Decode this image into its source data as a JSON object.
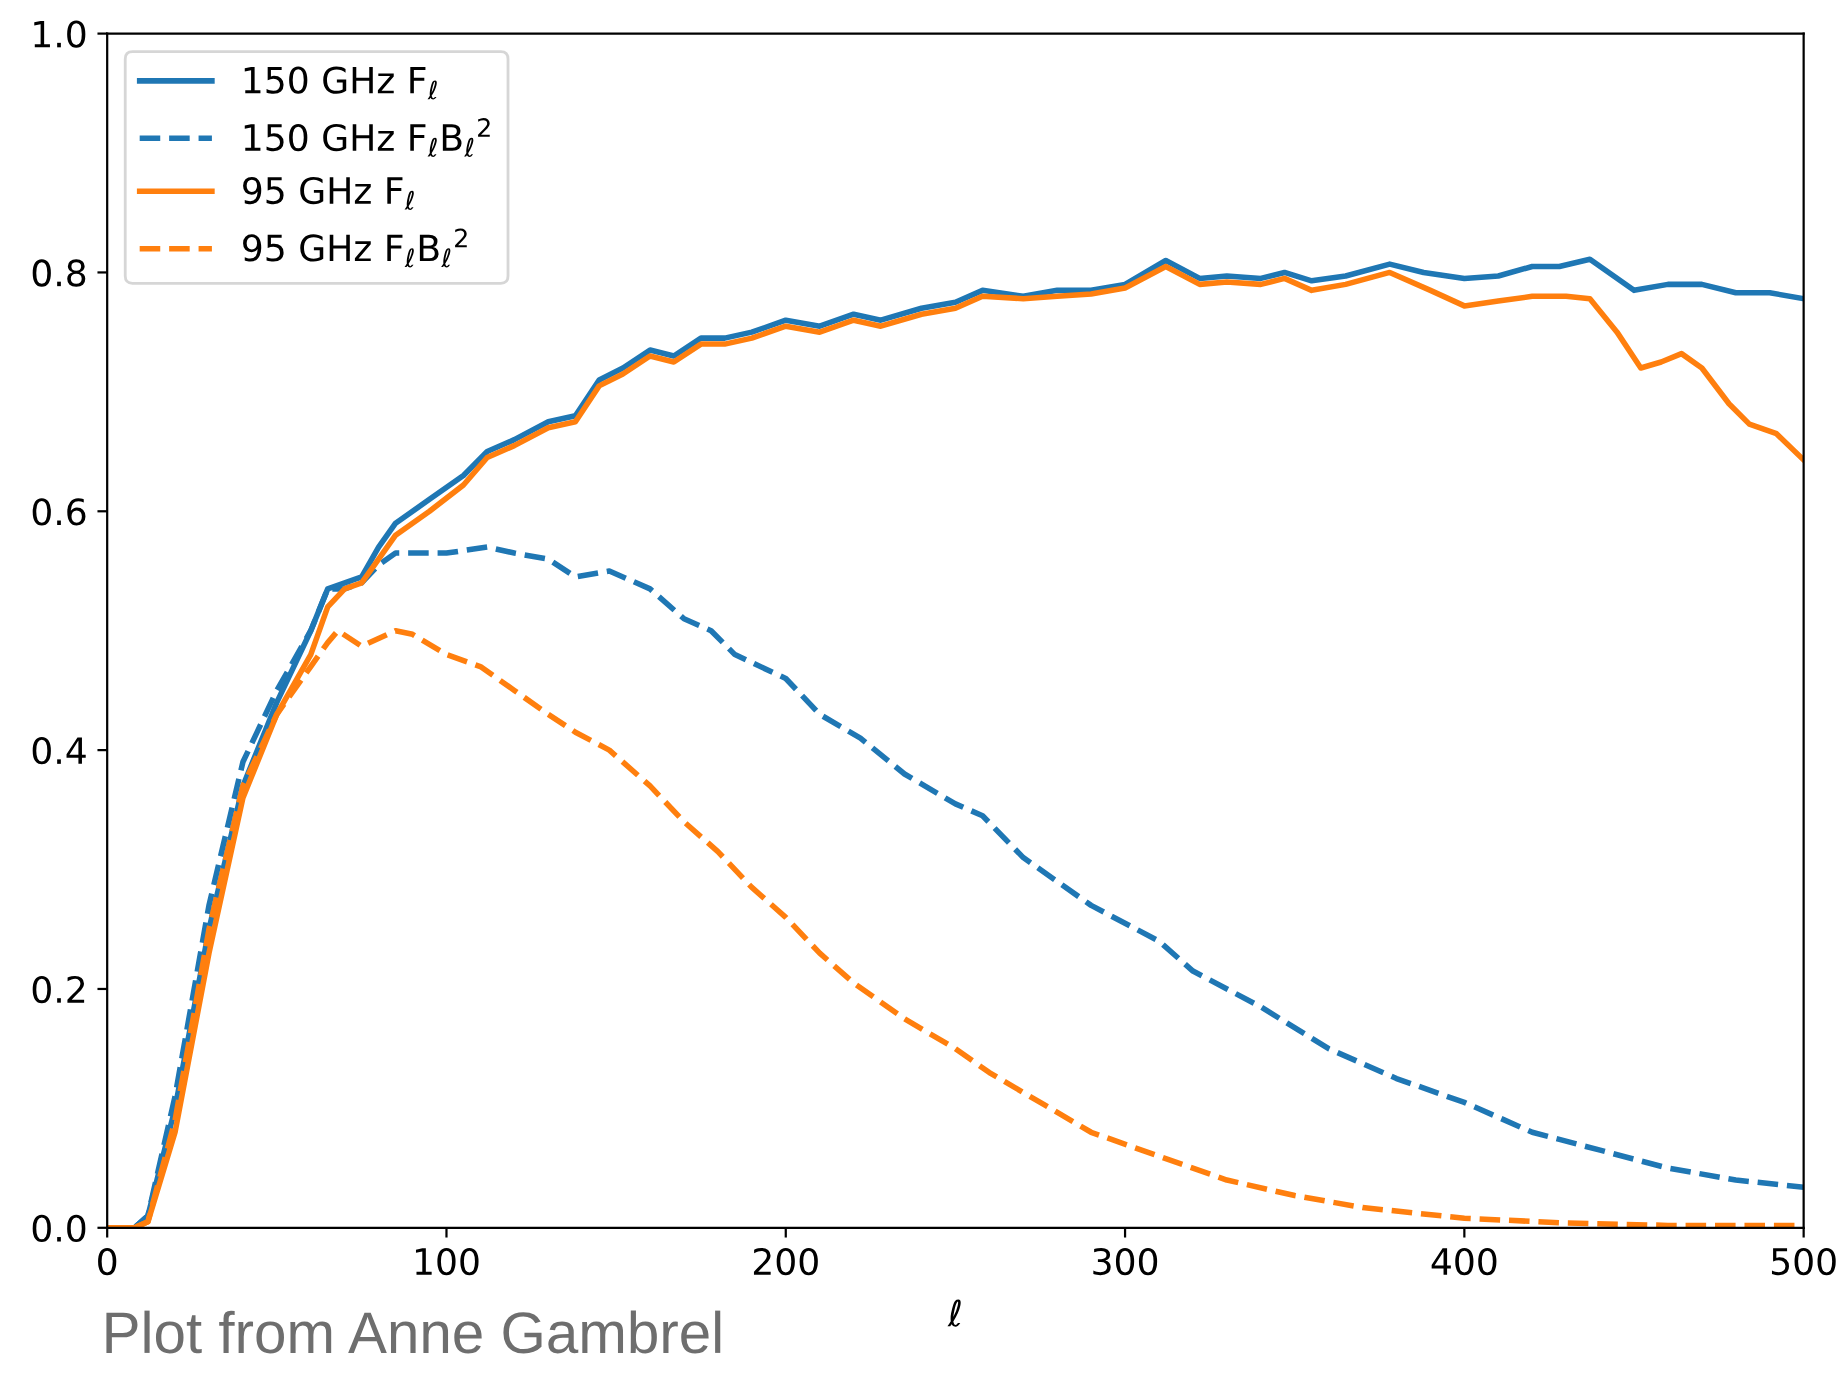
{
  "chart_data": {
    "type": "line",
    "xlabel": "ℓ",
    "xlim": [
      0,
      500
    ],
    "ylim": [
      0,
      1.0
    ],
    "xticks": [
      0,
      100,
      200,
      300,
      400,
      500
    ],
    "yticks": [
      {
        "value": 0,
        "label": "0.0"
      },
      0.2,
      0.4,
      0.6,
      0.8,
      {
        "value": 1.0,
        "label": "1.0"
      }
    ],
    "grid": false,
    "legend": "top left",
    "marker": "none",
    "annotations": [
      "Plot from Anne Gambrel"
    ],
    "series": [
      {
        "name": "150 GHz F$_{ℓ}$",
        "color": "#1f77b4",
        "line_style": "solid",
        "x": [
          0,
          8,
          12,
          20,
          30,
          40,
          50,
          60,
          65,
          70,
          75,
          80,
          85,
          95,
          105,
          112,
          120,
          130,
          138,
          145,
          152,
          160,
          167,
          175,
          182,
          190,
          200,
          210,
          220,
          228,
          240,
          250,
          258,
          270,
          280,
          290,
          300,
          312,
          322,
          330,
          340,
          347,
          355,
          365,
          378,
          388,
          400,
          410,
          420,
          428,
          437,
          450,
          460,
          470,
          480,
          490,
          500
        ],
        "values": [
          0,
          0,
          0.01,
          0.1,
          0.25,
          0.37,
          0.44,
          0.5,
          0.535,
          0.54,
          0.545,
          0.57,
          0.59,
          0.61,
          0.63,
          0.65,
          0.66,
          0.675,
          0.68,
          0.71,
          0.72,
          0.735,
          0.73,
          0.745,
          0.745,
          0.75,
          0.76,
          0.755,
          0.765,
          0.76,
          0.77,
          0.775,
          0.785,
          0.78,
          0.785,
          0.785,
          0.79,
          0.81,
          0.795,
          0.797,
          0.795,
          0.8,
          0.793,
          0.797,
          0.807,
          0.8,
          0.795,
          0.797,
          0.805,
          0.805,
          0.811,
          0.785,
          0.79,
          0.79,
          0.783,
          0.783,
          0.778
        ]
      },
      {
        "name": "150 GHz F$_{ℓ}$B$_{ℓ}$$^{2}$",
        "color": "#1f77b4",
        "line_style": "dashed",
        "x": [
          0,
          8,
          12,
          20,
          30,
          40,
          50,
          60,
          65,
          70,
          75,
          80,
          85,
          100,
          112,
          120,
          130,
          138,
          148,
          160,
          170,
          178,
          185,
          200,
          210,
          222,
          235,
          250,
          258,
          270,
          290,
          310,
          320,
          340,
          360,
          380,
          400,
          420,
          440,
          460,
          480,
          500
        ],
        "values": [
          0,
          0,
          0.01,
          0.11,
          0.27,
          0.39,
          0.45,
          0.5,
          0.535,
          0.535,
          0.54,
          0.555,
          0.565,
          0.565,
          0.57,
          0.565,
          0.56,
          0.545,
          0.55,
          0.535,
          0.51,
          0.5,
          0.48,
          0.46,
          0.43,
          0.41,
          0.38,
          0.355,
          0.345,
          0.31,
          0.27,
          0.24,
          0.215,
          0.185,
          0.15,
          0.125,
          0.105,
          0.08,
          0.065,
          0.05,
          0.04,
          0.034
        ]
      },
      {
        "name": "95 GHz F$_{ℓ}$",
        "color": "#ff7f0e",
        "line_style": "solid",
        "x": [
          0,
          8,
          12,
          20,
          30,
          40,
          50,
          60,
          65,
          70,
          75,
          80,
          85,
          95,
          105,
          112,
          120,
          130,
          138,
          145,
          152,
          160,
          167,
          175,
          182,
          190,
          200,
          210,
          220,
          228,
          240,
          250,
          258,
          270,
          280,
          290,
          300,
          312,
          322,
          330,
          340,
          347,
          355,
          365,
          378,
          390,
          400,
          410,
          420,
          430,
          437,
          445,
          452,
          458,
          464,
          470,
          478,
          484,
          492,
          500
        ],
        "values": [
          0,
          0,
          0.005,
          0.08,
          0.23,
          0.36,
          0.43,
          0.48,
          0.52,
          0.535,
          0.54,
          0.56,
          0.58,
          0.6,
          0.622,
          0.645,
          0.655,
          0.67,
          0.675,
          0.705,
          0.715,
          0.73,
          0.725,
          0.74,
          0.74,
          0.745,
          0.755,
          0.75,
          0.76,
          0.755,
          0.765,
          0.77,
          0.78,
          0.778,
          0.78,
          0.782,
          0.787,
          0.805,
          0.79,
          0.792,
          0.79,
          0.795,
          0.785,
          0.79,
          0.8,
          0.785,
          0.772,
          0.776,
          0.78,
          0.78,
          0.778,
          0.75,
          0.72,
          0.725,
          0.732,
          0.72,
          0.69,
          0.673,
          0.665,
          0.643
        ]
      },
      {
        "name": "95 GHz F$_{ℓ}$B$_{ℓ}$$^{2}$",
        "color": "#ff7f0e",
        "line_style": "dashed",
        "x": [
          0,
          8,
          12,
          20,
          30,
          40,
          50,
          60,
          65,
          68,
          75,
          85,
          90,
          100,
          110,
          120,
          130,
          138,
          148,
          160,
          170,
          180,
          190,
          200,
          210,
          220,
          235,
          250,
          260,
          275,
          290,
          310,
          330,
          350,
          370,
          400,
          430,
          460,
          500
        ],
        "values": [
          0,
          0,
          0.005,
          0.09,
          0.25,
          0.37,
          0.43,
          0.47,
          0.49,
          0.5,
          0.487,
          0.5,
          0.497,
          0.48,
          0.47,
          0.45,
          0.43,
          0.415,
          0.4,
          0.37,
          0.34,
          0.315,
          0.285,
          0.26,
          0.23,
          0.205,
          0.175,
          0.15,
          0.13,
          0.105,
          0.08,
          0.06,
          0.04,
          0.027,
          0.017,
          0.008,
          0.004,
          0.002,
          0.002
        ]
      }
    ]
  }
}
